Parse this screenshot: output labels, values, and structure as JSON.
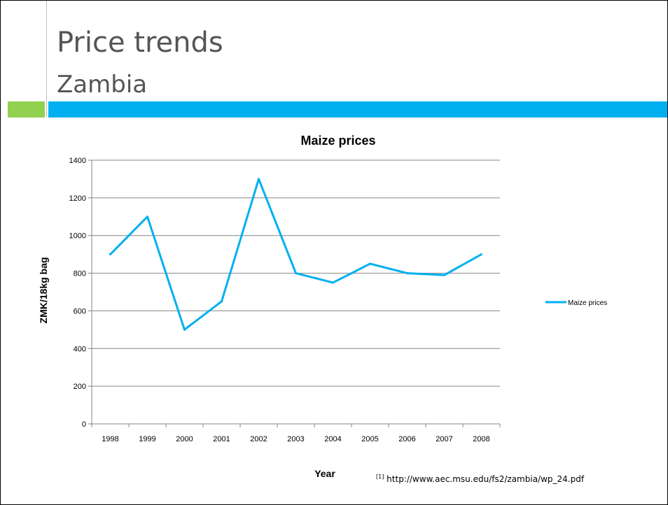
{
  "slide": {
    "title": "Price trends",
    "subtitle": "Zambia",
    "accent_green": "#92d050",
    "accent_blue": "#00b0f0"
  },
  "footnote": {
    "marker": "[1]",
    "text": "http://www.aec.msu.edu/fs2/zambia/wp_24.pdf"
  },
  "chart_data": {
    "type": "line",
    "title": "Maize prices",
    "xlabel": "Year",
    "ylabel": "ZMK/18kg bag",
    "categories": [
      "1998",
      "1999",
      "2000",
      "2001",
      "2002",
      "2003",
      "2004",
      "2005",
      "2006",
      "2007",
      "2008"
    ],
    "series": [
      {
        "name": "Maize prices",
        "color": "#00b0f0",
        "values": [
          900,
          1100,
          500,
          650,
          1300,
          800,
          750,
          850,
          800,
          790,
          900
        ]
      }
    ],
    "ylim": [
      0,
      1400
    ],
    "yticks": [
      0,
      200,
      400,
      600,
      800,
      1000,
      1200,
      1400
    ],
    "grid": true,
    "legend": "right"
  }
}
